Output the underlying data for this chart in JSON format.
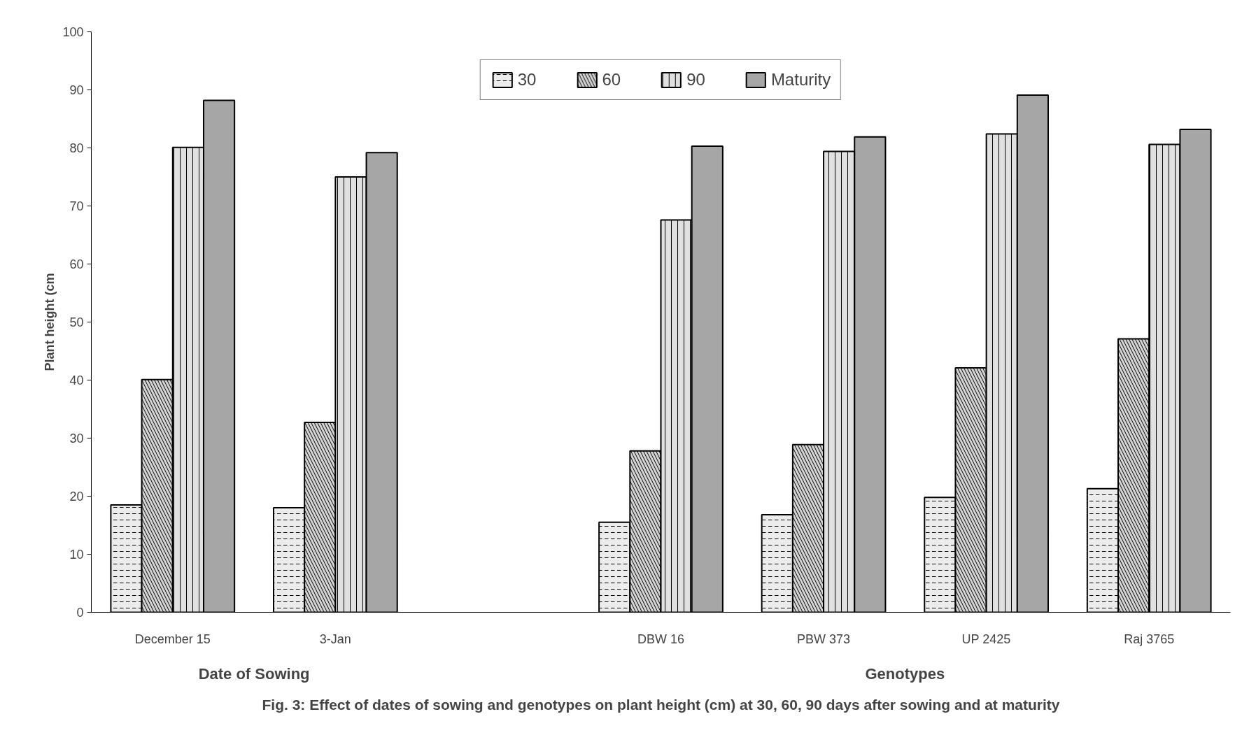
{
  "chart_data": {
    "type": "bar",
    "ylabel": "Plant height (cm",
    "categories": [
      "December 15",
      "3-Jan",
      null,
      "DBW 16",
      "PBW 373",
      "UP 2425",
      "Raj 3765"
    ],
    "series": [
      {
        "name": "30",
        "color": "#ececec",
        "values": [
          18.5,
          18.0,
          null,
          15.5,
          16.8,
          19.8,
          21.3
        ]
      },
      {
        "name": "60",
        "color": "#d4d4d4",
        "values": [
          40.1,
          32.7,
          null,
          27.8,
          28.9,
          42.1,
          47.1
        ]
      },
      {
        "name": "90",
        "color": "#e0e0e0",
        "values": [
          80.1,
          75.0,
          null,
          67.6,
          79.4,
          82.4,
          80.6
        ]
      },
      {
        "name": "Maturity",
        "color": "#a6a6a6",
        "values": [
          88.2,
          79.2,
          null,
          80.3,
          81.9,
          89.1,
          83.2
        ]
      }
    ],
    "ylim": [
      0,
      100
    ],
    "yticks": [
      0,
      10,
      20,
      30,
      40,
      50,
      60,
      70,
      80,
      90,
      100
    ],
    "grid": false,
    "legend": "top",
    "annotations": [
      "Date of Sowing",
      "Genotypes",
      "Fig. 3: Effect of dates of sowing and genotypes on plant height (cm) at 30, 60, 90 days after sowing and at maturity"
    ]
  }
}
